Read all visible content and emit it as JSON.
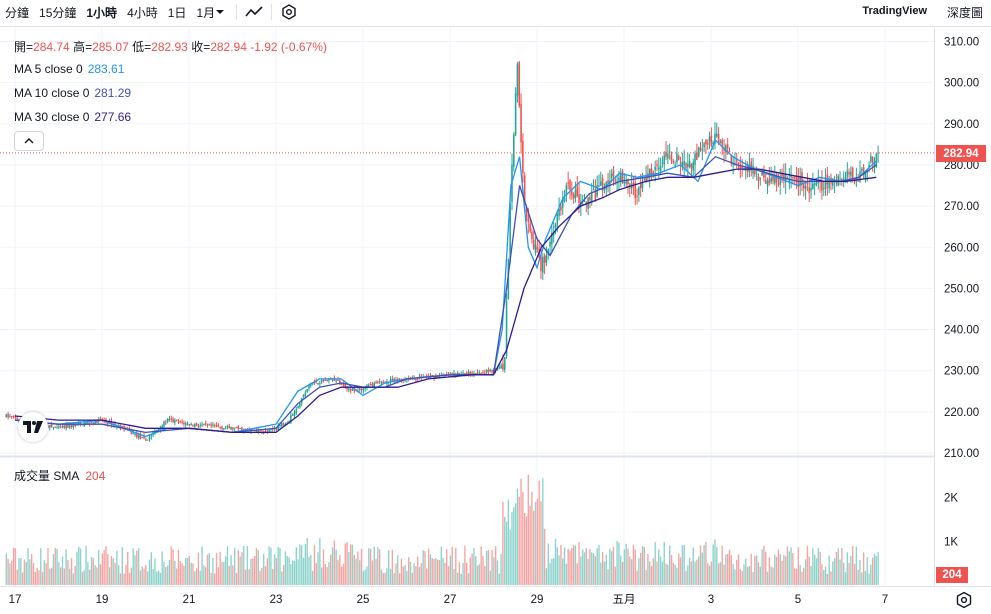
{
  "toolbar": {
    "timeframes": [
      {
        "label": "分鐘",
        "active": false
      },
      {
        "label": "15分鐘",
        "active": false
      },
      {
        "label": "1小時",
        "active": true
      },
      {
        "label": "4小時",
        "active": false
      },
      {
        "label": "1日",
        "active": false
      }
    ],
    "dropdown_label": "1月",
    "chart_type_icon": "line-chart-icon",
    "indicator_icon": "hexagon-settings-icon",
    "brand": "TradingView",
    "depth_label": "深度圖"
  },
  "legend": {
    "open_key": "開=",
    "open": "284.74",
    "high_key": "高=",
    "high": "285.07",
    "low_key": "低=",
    "low": "282.93",
    "close_key": "收=",
    "close": "282.94",
    "change": "-1.92 (-0.67%)",
    "ma": [
      {
        "label": "MA 5 close 0",
        "value": "283.61",
        "color": "#2196f3"
      },
      {
        "label": "MA 10 close 0",
        "value": "281.29",
        "color": "#3f51b5"
      },
      {
        "label": "MA 30 close 0",
        "value": "277.66",
        "color": "#311b92"
      }
    ],
    "volume_label": "成交量 SMA",
    "volume_value": "204"
  },
  "chart_data": {
    "type": "candlestick",
    "price_axis_ticks": [
      "310.00",
      "300.00",
      "290.00",
      "280.00",
      "270.00",
      "260.00",
      "250.00",
      "240.00",
      "230.00",
      "220.00",
      "210.00"
    ],
    "price_range": [
      210,
      310
    ],
    "volume_axis_ticks": [
      "2K",
      "1K"
    ],
    "volume_range": [
      0,
      2500
    ],
    "x_axis_ticks": [
      "17",
      "19",
      "21",
      "23",
      "25",
      "27",
      "29",
      "五月",
      "3",
      "5",
      "7"
    ],
    "last_price": "282.94",
    "last_volume": "204",
    "ma_lines": [
      {
        "name": "MA 5 close 0",
        "color": "#2196f3",
        "points": [
          [
            17,
            218
          ],
          [
            18,
            217
          ],
          [
            19,
            218
          ],
          [
            20,
            214
          ],
          [
            20.5,
            216
          ],
          [
            21,
            216
          ],
          [
            22,
            215
          ],
          [
            23,
            217
          ],
          [
            23.5,
            225
          ],
          [
            24,
            228
          ],
          [
            24.5,
            228
          ],
          [
            25,
            224
          ],
          [
            25.5,
            227
          ],
          [
            26,
            228
          ],
          [
            27,
            229
          ],
          [
            27.5,
            229
          ],
          [
            28,
            229
          ],
          [
            28.2,
            240
          ],
          [
            28.4,
            275
          ],
          [
            28.6,
            282
          ],
          [
            28.8,
            260
          ],
          [
            29,
            255
          ],
          [
            29.2,
            262
          ],
          [
            29.6,
            272
          ],
          [
            30,
            276
          ],
          [
            30.5,
            274
          ],
          [
            30.9,
            278
          ],
          [
            31.3,
            277
          ],
          [
            31.8,
            278
          ],
          [
            32.3,
            280
          ],
          [
            32.7,
            276
          ],
          [
            33.1,
            286
          ],
          [
            33.5,
            282
          ],
          [
            34,
            279
          ],
          [
            34.5,
            277
          ],
          [
            35,
            275
          ],
          [
            35.5,
            277
          ],
          [
            36,
            276
          ],
          [
            36.4,
            277
          ],
          [
            36.8,
            281
          ]
        ]
      },
      {
        "name": "MA 10 close 0",
        "color": "#3f51b5",
        "points": [
          [
            17,
            218
          ],
          [
            18,
            217
          ],
          [
            19,
            217
          ],
          [
            20,
            215
          ],
          [
            21,
            216
          ],
          [
            22,
            215
          ],
          [
            23,
            216
          ],
          [
            23.5,
            222
          ],
          [
            24,
            226
          ],
          [
            24.5,
            227
          ],
          [
            25,
            226
          ],
          [
            25.5,
            226
          ],
          [
            26,
            228
          ],
          [
            27,
            229
          ],
          [
            28,
            229
          ],
          [
            28.3,
            250
          ],
          [
            28.6,
            275
          ],
          [
            29,
            262
          ],
          [
            29.3,
            258
          ],
          [
            29.8,
            268
          ],
          [
            30.2,
            273
          ],
          [
            30.9,
            276
          ],
          [
            31.5,
            277
          ],
          [
            32,
            278
          ],
          [
            32.6,
            277
          ],
          [
            33.1,
            282
          ],
          [
            33.6,
            280
          ],
          [
            34,
            279
          ],
          [
            34.6,
            277
          ],
          [
            35,
            276
          ],
          [
            35.6,
            276
          ],
          [
            36,
            276
          ],
          [
            36.4,
            277
          ],
          [
            36.8,
            280
          ]
        ]
      },
      {
        "name": "MA 30 close 0",
        "color": "#311b92",
        "points": [
          [
            17,
            219
          ],
          [
            18,
            218
          ],
          [
            19,
            218
          ],
          [
            20,
            216
          ],
          [
            21,
            216
          ],
          [
            22,
            215
          ],
          [
            23,
            215
          ],
          [
            23.5,
            219
          ],
          [
            24,
            224
          ],
          [
            24.5,
            226
          ],
          [
            25,
            226
          ],
          [
            25.8,
            226
          ],
          [
            26.5,
            228
          ],
          [
            27.5,
            229
          ],
          [
            28,
            229
          ],
          [
            28.3,
            235
          ],
          [
            28.7,
            250
          ],
          [
            29.1,
            260
          ],
          [
            29.5,
            265
          ],
          [
            30,
            270
          ],
          [
            30.5,
            272
          ],
          [
            30.9,
            274
          ],
          [
            31.5,
            276
          ],
          [
            32,
            277
          ],
          [
            32.6,
            277
          ],
          [
            33.1,
            278
          ],
          [
            33.6,
            279
          ],
          [
            34.1,
            279
          ],
          [
            34.6,
            278
          ],
          [
            35.1,
            277
          ],
          [
            35.6,
            276
          ],
          [
            36.1,
            276
          ],
          [
            36.8,
            277
          ]
        ]
      }
    ]
  },
  "colors": {
    "up": "#26a69a",
    "down": "#ef5350",
    "grid": "#f0f3fa",
    "axis_text": "#131722"
  }
}
